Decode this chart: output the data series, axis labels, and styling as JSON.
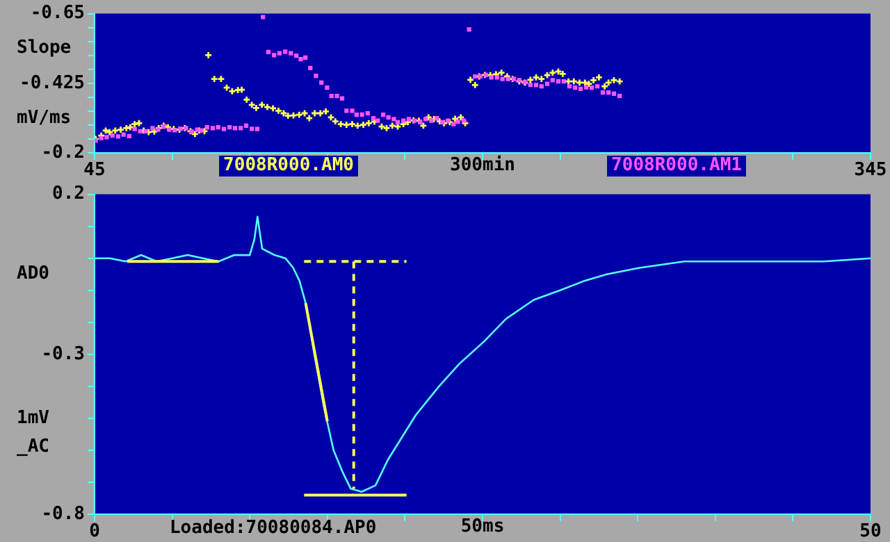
{
  "chart_data": [
    {
      "type": "scatter",
      "xlabel": "300min",
      "ylabel": "Slope mV/ms",
      "legend": "bottom",
      "xlim": [
        45,
        345
      ],
      "xticks": [
        45,
        {
          "value": 75,
          "label": null
        },
        {
          "value": 105,
          "label": null
        },
        {
          "value": 135,
          "label": null
        },
        {
          "value": 165,
          "label": null
        },
        {
          "value": 195,
          "label": null
        },
        {
          "value": 225,
          "label": null
        },
        {
          "value": 255,
          "label": null
        },
        {
          "value": 285,
          "label": null
        },
        {
          "value": 315,
          "label": null
        },
        345
      ],
      "ylim": [
        -0.2,
        -0.65
      ],
      "yticks": [
        -0.65,
        {
          "value": -0.605,
          "label": null
        },
        {
          "value": -0.56,
          "label": null
        },
        {
          "value": -0.515,
          "label": null
        },
        {
          "value": -0.47,
          "label": null
        },
        -0.425,
        {
          "value": -0.38,
          "label": null
        },
        {
          "value": -0.335,
          "label": null
        },
        {
          "value": -0.29,
          "label": null
        },
        {
          "value": -0.245,
          "label": null
        },
        -0.2
      ],
      "series": [
        {
          "name": "7008R000.AM0",
          "color": "#ffff55",
          "marker": "cross",
          "x": [
            45.4,
            47.6,
            49.3,
            50.8,
            53.0,
            55.1,
            57.3,
            58.8,
            60.5,
            62.2,
            64.0,
            65.9,
            68.1,
            69.8,
            71.7,
            73.4,
            75.6,
            77.8,
            79.9,
            82.1,
            83.8,
            85.5,
            87.5,
            89.0,
            91.3,
            93.9,
            96.1,
            98.2,
            100.4,
            101.9,
            103.8,
            105.8,
            107.5,
            109.7,
            111.8,
            114.0,
            116.1,
            118.1,
            119.8,
            121.9,
            124.1,
            126.2,
            128.0,
            130.1,
            132.3,
            134.4,
            136.4,
            138.1,
            140.2,
            142.4,
            144.6,
            146.7,
            148.9,
            151.0,
            153.2,
            156.0,
            157.9,
            160.1,
            162.2,
            164.4,
            166.1,
            168.3,
            170.4,
            172.1,
            174.1,
            176.2,
            178.4,
            180.1,
            182.3,
            184.4,
            186.6,
            188.3,
            190.3,
            192.1,
            193.7,
            195.9,
            198.0,
            200.2,
            202.3,
            204.5,
            206.6,
            209.2,
            211.4,
            213.5,
            215.7,
            217.8,
            220.0,
            222.1,
            224.3,
            226.0,
            228.2,
            230.3,
            232.5,
            234.6,
            236.1,
            237.9,
            240.0,
            242.2,
            243.7,
            245.8,
            248.0
          ],
          "values": [
            -0.245,
            -0.256,
            -0.272,
            -0.267,
            -0.272,
            -0.275,
            -0.28,
            -0.283,
            -0.293,
            -0.296,
            -0.272,
            -0.267,
            -0.269,
            -0.28,
            -0.288,
            -0.283,
            -0.277,
            -0.275,
            -0.28,
            -0.27,
            -0.261,
            -0.272,
            -0.27,
            -0.516,
            -0.439,
            -0.439,
            -0.411,
            -0.399,
            -0.403,
            -0.404,
            -0.372,
            -0.355,
            -0.345,
            -0.355,
            -0.348,
            -0.344,
            -0.336,
            -0.328,
            -0.32,
            -0.321,
            -0.323,
            -0.328,
            -0.312,
            -0.328,
            -0.328,
            -0.334,
            -0.315,
            -0.302,
            -0.293,
            -0.291,
            -0.293,
            -0.288,
            -0.291,
            -0.296,
            -0.301,
            -0.285,
            -0.28,
            -0.288,
            -0.285,
            -0.293,
            -0.299,
            -0.305,
            -0.304,
            -0.288,
            -0.315,
            -0.309,
            -0.302,
            -0.296,
            -0.299,
            -0.31,
            -0.315,
            -0.296,
            -0.436,
            -0.419,
            -0.447,
            -0.452,
            -0.451,
            -0.454,
            -0.459,
            -0.447,
            -0.439,
            -0.431,
            -0.427,
            -0.436,
            -0.444,
            -0.439,
            -0.451,
            -0.459,
            -0.463,
            -0.455,
            -0.431,
            -0.431,
            -0.427,
            -0.427,
            -0.423,
            -0.435,
            -0.444,
            -0.415,
            -0.427,
            -0.435,
            -0.431
          ]
        },
        {
          "name": "7008R000.AM1",
          "color": "#ff55ff",
          "marker": "square",
          "x": [
            45.4,
            47.6,
            49.7,
            51.9,
            54.1,
            56.2,
            58.4,
            60.5,
            62.7,
            64.8,
            67.4,
            69.6,
            71.7,
            73.9,
            76.0,
            78.2,
            80.3,
            82.5,
            84.7,
            86.4,
            88.5,
            90.7,
            92.8,
            95.0,
            97.2,
            99.3,
            101.5,
            103.6,
            105.8,
            107.9,
            110.1,
            112.2,
            114.4,
            116.5,
            118.7,
            120.9,
            123.0,
            124.7,
            126.5,
            128.4,
            130.6,
            132.7,
            134.9,
            136.6,
            138.7,
            140.7,
            142.4,
            144.6,
            146.3,
            148.4,
            150.6,
            152.8,
            154.5,
            156.6,
            158.6,
            160.7,
            162.2,
            164.4,
            166.5,
            168.7,
            170.9,
            173.0,
            175.2,
            177.3,
            179.5,
            181.6,
            183.8,
            185.5,
            187.7,
            189.8,
            192.1,
            194.1,
            196.3,
            198.4,
            200.6,
            202.7,
            204.9,
            207.1,
            209.2,
            211.4,
            213.5,
            215.7,
            217.8,
            220.0,
            222.1,
            224.3,
            226.4,
            228.6,
            230.8,
            232.9,
            235.1,
            237.2,
            239.4,
            241.5,
            243.7,
            245.8,
            248.0
          ],
          "values": [
            -0.24,
            -0.248,
            -0.251,
            -0.256,
            -0.253,
            -0.259,
            -0.254,
            -0.277,
            -0.27,
            -0.27,
            -0.28,
            -0.275,
            -0.285,
            -0.275,
            -0.273,
            -0.278,
            -0.28,
            -0.269,
            -0.275,
            -0.272,
            -0.283,
            -0.28,
            -0.283,
            -0.277,
            -0.283,
            -0.28,
            -0.28,
            -0.288,
            -0.278,
            -0.277,
            -0.639,
            -0.526,
            -0.516,
            -0.522,
            -0.527,
            -0.522,
            -0.514,
            -0.503,
            -0.508,
            -0.474,
            -0.449,
            -0.427,
            -0.411,
            -0.384,
            -0.384,
            -0.376,
            -0.336,
            -0.336,
            -0.323,
            -0.324,
            -0.328,
            -0.312,
            -0.304,
            -0.323,
            -0.315,
            -0.309,
            -0.299,
            -0.304,
            -0.309,
            -0.304,
            -0.299,
            -0.309,
            -0.304,
            -0.312,
            -0.299,
            -0.304,
            -0.293,
            -0.301,
            -0.304,
            -0.599,
            -0.447,
            -0.447,
            -0.452,
            -0.444,
            -0.444,
            -0.439,
            -0.439,
            -0.439,
            -0.435,
            -0.428,
            -0.42,
            -0.419,
            -0.415,
            -0.423,
            -0.435,
            -0.431,
            -0.431,
            -0.415,
            -0.411,
            -0.407,
            -0.412,
            -0.411,
            -0.415,
            -0.395,
            -0.395,
            -0.391,
            -0.384
          ]
        }
      ]
    },
    {
      "type": "line",
      "xlabel": "50ms",
      "ylabel": "AD0",
      "annotations": [
        "1mV",
        "_AC",
        "Loaded:70080084.AP0"
      ],
      "xlim": [
        0,
        50
      ],
      "xticks": [
        0,
        {
          "value": 5,
          "label": null
        },
        {
          "value": 10,
          "label": null
        },
        {
          "value": 15,
          "label": null
        },
        {
          "value": 20,
          "label": null
        },
        {
          "value": 25,
          "label": null
        },
        {
          "value": 30,
          "label": null
        },
        {
          "value": 35,
          "label": null
        },
        {
          "value": 40,
          "label": null
        },
        {
          "value": 45,
          "label": null
        },
        50
      ],
      "ylim": [
        -0.8,
        0.2
      ],
      "yticks": [
        -0.8,
        {
          "value": -0.7,
          "label": null
        },
        {
          "value": -0.6,
          "label": null
        },
        {
          "value": -0.5,
          "label": null
        },
        {
          "value": -0.4,
          "label": null
        },
        -0.3,
        {
          "value": -0.2,
          "label": null
        },
        {
          "value": -0.1,
          "label": null
        },
        {
          "value": 0,
          "label": null
        },
        {
          "value": 0.1,
          "label": null
        },
        0.2
      ],
      "series": [
        {
          "color": "#55ffff",
          "marker": "none",
          "line_style": "solid",
          "x": [
            0,
            1,
            2,
            3,
            4,
            5,
            6,
            7,
            8,
            9,
            10,
            10.3,
            10.5,
            10.8,
            11.2,
            11.6,
            12.3,
            12.8,
            13.2,
            13.6,
            14.2,
            14.8,
            15.4,
            16.0,
            16.5,
            17.2,
            18.1,
            18.9,
            19.8,
            20.7,
            22.2,
            23.5,
            25.1,
            26.5,
            28.3,
            30,
            31.6,
            33,
            35.1,
            38,
            41,
            43.9,
            47,
            50
          ],
          "values": [
            0.0,
            0.0,
            -0.01,
            0.01,
            -0.01,
            0.0,
            0.01,
            0.0,
            -0.01,
            0.01,
            0.01,
            0.06,
            0.13,
            0.03,
            0.02,
            0.01,
            0.0,
            -0.03,
            -0.07,
            -0.14,
            -0.31,
            -0.47,
            -0.6,
            -0.67,
            -0.72,
            -0.73,
            -0.71,
            -0.63,
            -0.56,
            -0.49,
            -0.4,
            -0.33,
            -0.26,
            -0.19,
            -0.13,
            -0.1,
            -0.07,
            -0.05,
            -0.03,
            -0.01,
            -0.01,
            -0.01,
            -0.01,
            0.0
          ]
        },
        {
          "color": "#ffff55",
          "marker": "none",
          "line_style": "solid",
          "x": [
            2.1,
            8.0
          ],
          "values": [
            -0.01,
            -0.01
          ]
        },
        {
          "color": "#ffff55",
          "marker": "none",
          "line_style": "solid",
          "x": [
            13.6,
            15.0
          ],
          "values": [
            -0.14,
            -0.51
          ]
        },
        {
          "color": "#ffff55",
          "marker": "none",
          "line_style": "dashed",
          "x": [
            13.5,
            20.1
          ],
          "values": [
            -0.01,
            -0.01
          ]
        },
        {
          "color": "#ffff55",
          "marker": "none",
          "line_style": "dashed",
          "x": [
            16.7,
            16.7
          ],
          "values": [
            -0.01,
            -0.72
          ]
        },
        {
          "color": "#ffff55",
          "marker": "none",
          "line_style": "solid",
          "x": [
            13.5,
            20.1
          ],
          "values": [
            -0.74,
            -0.74
          ]
        }
      ]
    }
  ]
}
